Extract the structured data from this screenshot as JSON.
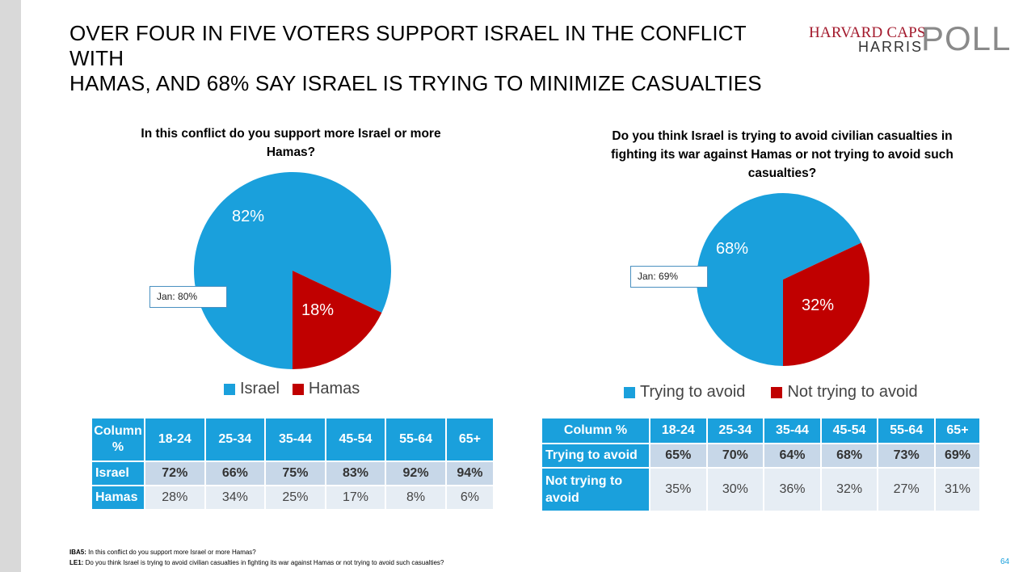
{
  "slide": {
    "title_line1": "OVER FOUR IN FIVE VOTERS SUPPORT ISRAEL IN THE CONFLICT WITH",
    "title_line2": "HAMAS, AND 68% SAY ISRAEL IS TRYING TO MINIMIZE CASUALTIES",
    "logo": {
      "line1": "HARVARD CAPS",
      "line2": "HARRIS",
      "line3": "POLL"
    },
    "page_number": "64",
    "footnotes": [
      {
        "code": "IBA5:",
        "text": " In this conflict do you support more Israel or more Hamas?"
      },
      {
        "code": "LE1:",
        "text": " Do you think Israel is trying to avoid civilian casualties in fighting its war against Hamas or not trying to avoid such casualties?"
      }
    ]
  },
  "colors": {
    "blue": "#1aa0dc",
    "red": "#c00000",
    "header": "#1aa0dc",
    "row_dark": "#c7d7e8",
    "row_light": "#e6edf4"
  },
  "chart_data": [
    {
      "type": "pie",
      "title_line1": "In this conflict do you support more Israel or more",
      "title_line2": "Hamas?",
      "slices": [
        {
          "name": "Israel",
          "value": 82,
          "label": "82%",
          "color": "#1aa0dc"
        },
        {
          "name": "Hamas",
          "value": 18,
          "label": "18%",
          "color": "#c00000"
        }
      ],
      "callout": "Jan: 80%",
      "legend_placement": "bottom",
      "table": {
        "header": [
          "Column %",
          "18-24",
          "25-34",
          "35-44",
          "45-54",
          "55-64",
          "65+"
        ],
        "rows": [
          {
            "label": "Israel",
            "values": [
              "72%",
              "66%",
              "75%",
              "83%",
              "92%",
              "94%"
            ]
          },
          {
            "label": "Hamas",
            "values": [
              "28%",
              "34%",
              "25%",
              "17%",
              "8%",
              "6%"
            ]
          }
        ]
      }
    },
    {
      "type": "pie",
      "title_line1": "Do you think Israel is trying to avoid civilian casualties in",
      "title_line2": "fighting its war against Hamas or not trying to avoid such",
      "title_line3": "casualties?",
      "slices": [
        {
          "name": "Trying to avoid",
          "value": 68,
          "label": "68%",
          "color": "#1aa0dc"
        },
        {
          "name": "Not trying to avoid",
          "value": 32,
          "label": "32%",
          "color": "#c00000"
        }
      ],
      "callout": "Jan: 69%",
      "legend_placement": "bottom",
      "table": {
        "header": [
          "Column %",
          "18-24",
          "25-34",
          "35-44",
          "45-54",
          "55-64",
          "65+"
        ],
        "rows": [
          {
            "label": "Trying to avoid",
            "values": [
              "65%",
              "70%",
              "64%",
              "68%",
              "73%",
              "69%"
            ]
          },
          {
            "label": "Not trying to avoid",
            "values": [
              "35%",
              "30%",
              "36%",
              "32%",
              "27%",
              "31%"
            ]
          }
        ]
      }
    }
  ]
}
